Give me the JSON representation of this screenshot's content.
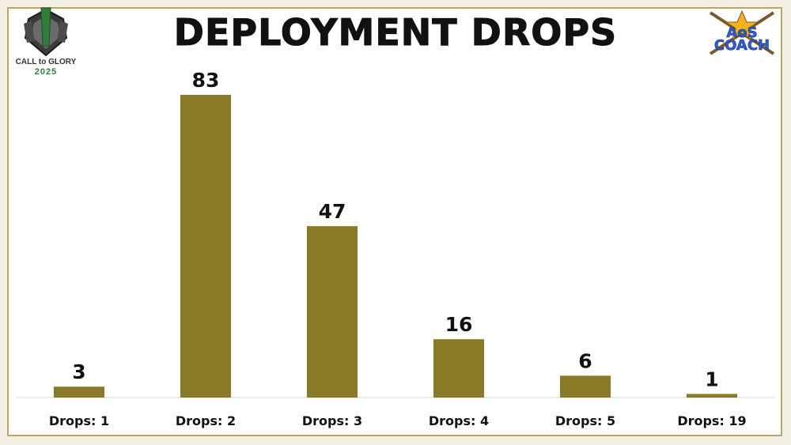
{
  "header": {
    "title": "DEPLOYMENT DROPS"
  },
  "logos": {
    "left": {
      "text_line1": "CALL to GLORY",
      "text_line2": "2025"
    },
    "right": {
      "text_line1": "AoS",
      "text_line2": "COACH"
    }
  },
  "colors": {
    "bar": "#8b7a27",
    "frame": "#b9a76a",
    "background": "#ffffff"
  },
  "chart_data": {
    "type": "bar",
    "title": "DEPLOYMENT DROPS",
    "xlabel": "",
    "ylabel": "",
    "categories": [
      "Drops: 1",
      "Drops: 2",
      "Drops: 3",
      "Drops: 4",
      "Drops: 5",
      "Drops: 19"
    ],
    "values": [
      3,
      83,
      47,
      16,
      6,
      1
    ],
    "data_labels": [
      "3",
      "83",
      "47",
      "16",
      "6",
      "1"
    ],
    "ylim": [
      0,
      83
    ],
    "grid": false,
    "legend": "none"
  }
}
